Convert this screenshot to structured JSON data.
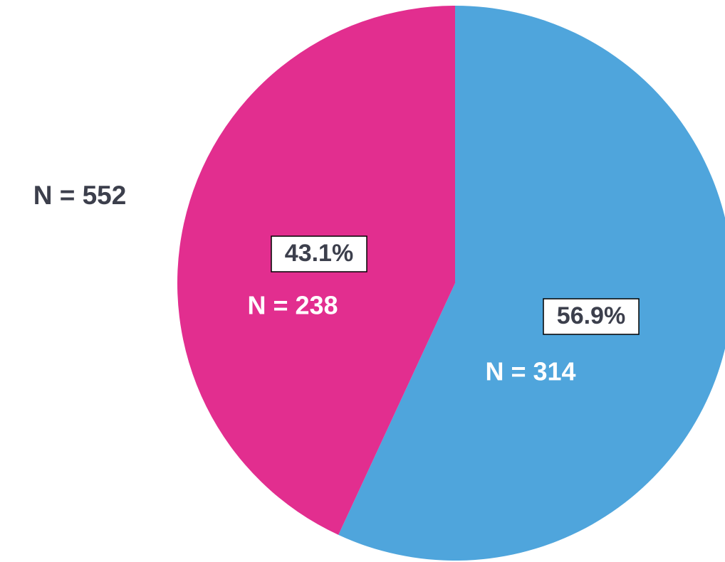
{
  "chart_data": {
    "type": "pie",
    "values": [
      56.9,
      43.1
    ],
    "value_labels": [
      "56.9%",
      "43.1%"
    ],
    "segment_labels": [
      "N = 314",
      "N = 238"
    ],
    "colors": [
      "#4fa5dc",
      "#e22e8f"
    ],
    "annotation": "N = 552"
  }
}
